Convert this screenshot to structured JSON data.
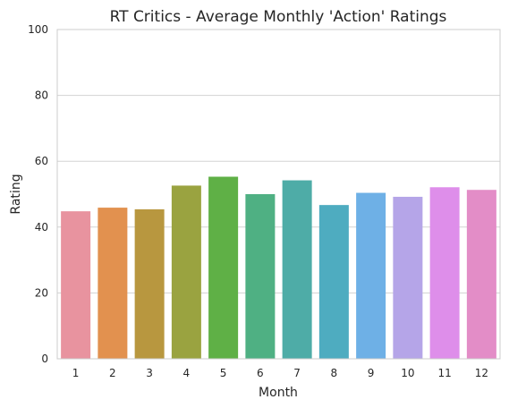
{
  "chart_data": {
    "type": "bar",
    "title": "RT Critics - Average Monthly 'Action' Ratings",
    "xlabel": "Month",
    "ylabel": "Rating",
    "categories": [
      "1",
      "2",
      "3",
      "4",
      "5",
      "6",
      "7",
      "8",
      "9",
      "10",
      "11",
      "12"
    ],
    "values": [
      44.8,
      45.9,
      45.4,
      52.6,
      55.3,
      50.0,
      54.2,
      46.7,
      50.4,
      49.2,
      52.1,
      51.3
    ],
    "bar_colors": [
      "#e8939f",
      "#e2914f",
      "#b8973f",
      "#9aa340",
      "#5fb046",
      "#4fb083",
      "#4eaca7",
      "#4eacc0",
      "#6eb0e6",
      "#b5a5e8",
      "#de8eea",
      "#e38dc7"
    ],
    "ylim": [
      0,
      100
    ],
    "yticks": [
      0,
      20,
      40,
      60,
      80,
      100
    ],
    "grid": true,
    "legend": "none"
  }
}
